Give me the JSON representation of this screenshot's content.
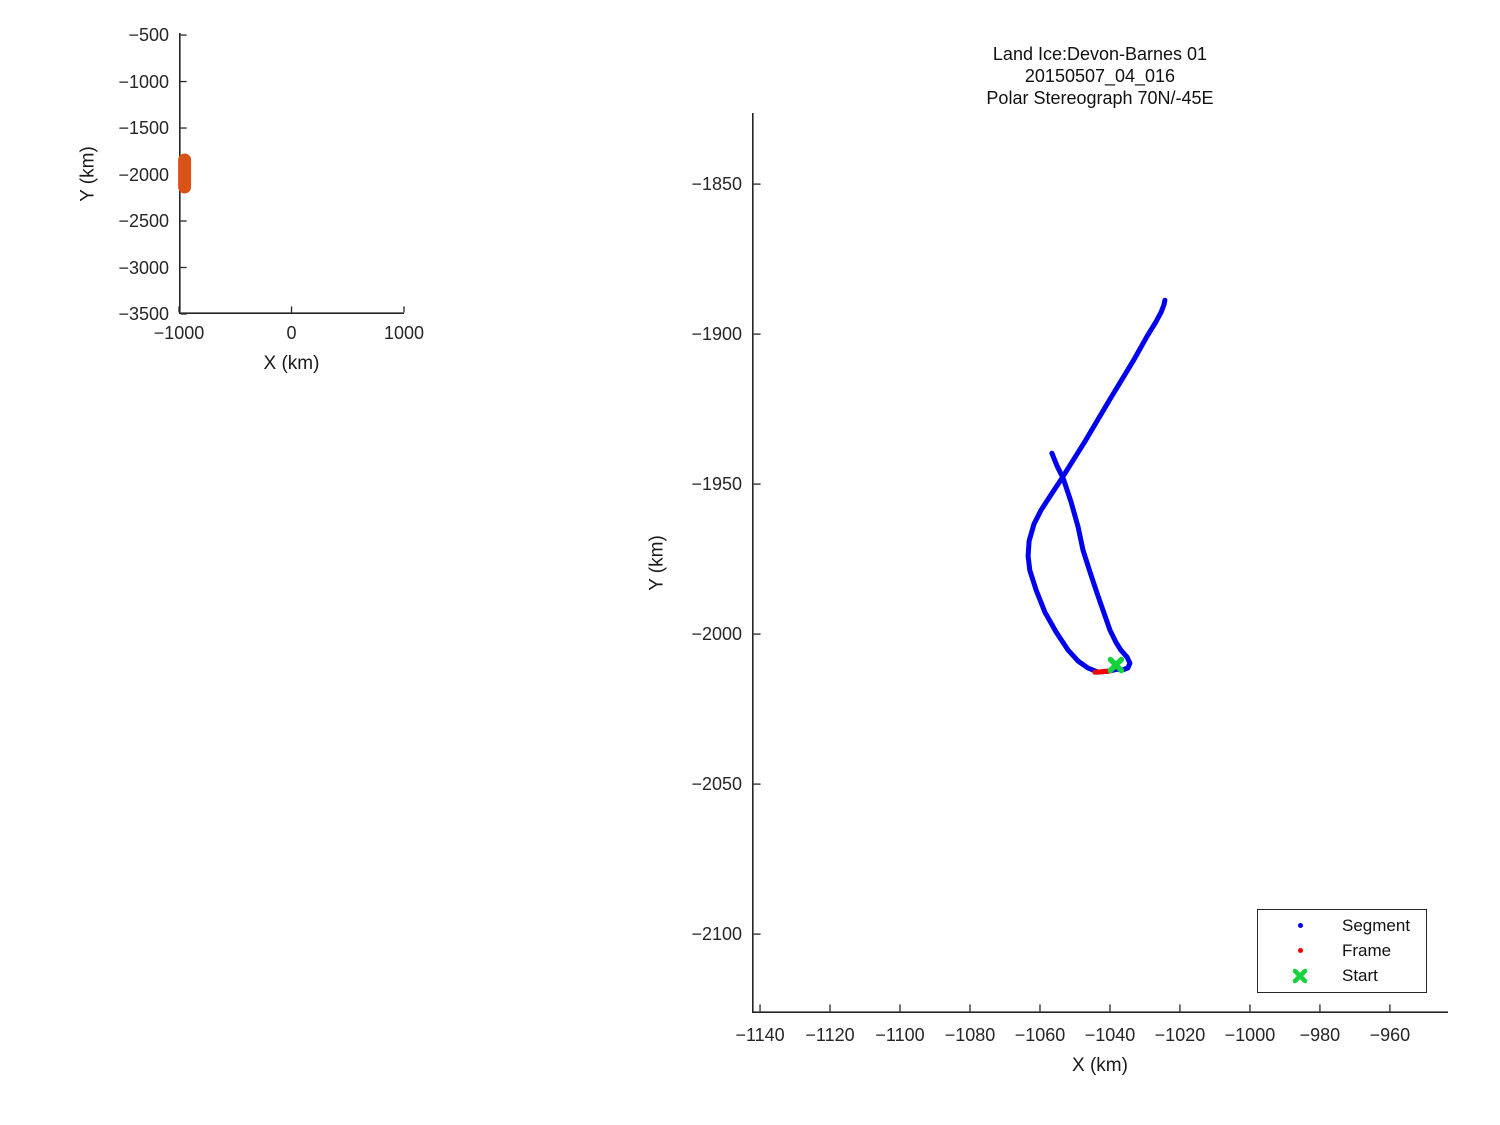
{
  "figure": {
    "background": "#ffffff",
    "title_lines": [
      "Land Ice:Devon-Barnes 01",
      "20150507_04_016",
      "Polar Stereograph 70N/-45E"
    ]
  },
  "colors": {
    "axis": "#262626",
    "text": "#1a1a1a",
    "segment_blue": "#0000ee",
    "frame_red": "#f40000",
    "start_green": "#17d23c",
    "overview_orange": "#d95319"
  },
  "chart_data": [
    {
      "id": "overview",
      "type": "line",
      "title": "",
      "xlabel": "X (km)",
      "ylabel": "Y (km)",
      "xlim": [
        -1000,
        1000
      ],
      "ylim": [
        -3500,
        -478
      ],
      "xticks": [
        -1000,
        0,
        1000
      ],
      "yticks": [
        -500,
        -1000,
        -1500,
        -2000,
        -2500,
        -3000,
        -3500
      ],
      "grid": false,
      "series": [
        {
          "name": "flight-track-overview",
          "color_key": "overview_orange",
          "stroke_px": 13,
          "points": [
            [
              -950,
              -1844
            ],
            [
              -950,
              -2134
            ]
          ]
        }
      ]
    },
    {
      "id": "main",
      "type": "line",
      "title": "Land Ice:Devon-Barnes 01 20150507_04_016 Polar Stereograph 70N/-45E",
      "xlabel": "X (km)",
      "ylabel": "Y (km)",
      "xlim": [
        -1142.3,
        -943.4
      ],
      "ylim": [
        -2126.3,
        -1826.3
      ],
      "xticks": [
        -1140,
        -1120,
        -1100,
        -1080,
        -1060,
        -1040,
        -1020,
        -1000,
        -980,
        -960
      ],
      "yticks": [
        -1850,
        -1900,
        -1950,
        -2000,
        -2050,
        -2100
      ],
      "grid": false,
      "series": [
        {
          "name": "Segment",
          "color_key": "segment_blue",
          "stroke_px": 5,
          "points": [
            [
              -1056.6,
              -1939.7
            ],
            [
              -1055.1,
              -1944.0
            ],
            [
              -1053.4,
              -1948.0
            ],
            [
              -1051.1,
              -1956.0
            ],
            [
              -1049.1,
              -1964.3
            ],
            [
              -1047.7,
              -1972.0
            ],
            [
              -1045.7,
              -1979.3
            ],
            [
              -1043.7,
              -1986.3
            ],
            [
              -1041.7,
              -1993.0
            ],
            [
              -1040.0,
              -1998.7
            ],
            [
              -1038.3,
              -2002.7
            ],
            [
              -1036.9,
              -2005.3
            ],
            [
              -1035.1,
              -2007.7
            ],
            [
              -1034.3,
              -2009.7
            ],
            [
              -1034.9,
              -2011.3
            ],
            [
              -1036.6,
              -2012.0
            ],
            [
              -1038.0,
              -2011.7
            ],
            [
              -1040.0,
              -2012.3
            ],
            [
              -1043.4,
              -2012.7
            ],
            [
              -1046.3,
              -2011.3
            ],
            [
              -1049.1,
              -2009.0
            ],
            [
              -1052.0,
              -2005.3
            ],
            [
              -1055.4,
              -1999.3
            ],
            [
              -1058.6,
              -1992.7
            ],
            [
              -1061.1,
              -1985.3
            ],
            [
              -1062.9,
              -1978.7
            ],
            [
              -1063.4,
              -1974.0
            ],
            [
              -1063.1,
              -1969.0
            ],
            [
              -1061.7,
              -1963.3
            ],
            [
              -1059.7,
              -1958.7
            ],
            [
              -1057.1,
              -1954.0
            ],
            [
              -1053.7,
              -1948.0
            ],
            [
              -1047.1,
              -1935.7
            ],
            [
              -1040.3,
              -1922.3
            ],
            [
              -1033.4,
              -1909.0
            ],
            [
              -1029.4,
              -1900.7
            ],
            [
              -1026.9,
              -1896.0
            ],
            [
              -1025.4,
              -1892.7
            ],
            [
              -1024.6,
              -1890.3
            ],
            [
              -1024.3,
              -1888.7
            ]
          ]
        },
        {
          "name": "Frame",
          "color_key": "frame_red",
          "stroke_px": 5,
          "points": [
            [
              -1044.3,
              -2012.7
            ],
            [
              -1042.0,
              -2012.5
            ],
            [
              -1040.0,
              -2012.3
            ]
          ]
        },
        {
          "name": "Start",
          "color_key": "start_green",
          "marker": "x",
          "marker_size_px": 11,
          "stroke_px": 5.5,
          "points": [
            [
              -1038.3,
              -2010.3
            ]
          ]
        }
      ],
      "legend": {
        "position": "bottom-right",
        "entries": [
          {
            "label": "Segment",
            "marker": "dot",
            "color_key": "segment_blue"
          },
          {
            "label": "Frame",
            "marker": "dot",
            "color_key": "frame_red"
          },
          {
            "label": "Start",
            "marker": "x",
            "color_key": "start_green"
          }
        ]
      }
    }
  ]
}
